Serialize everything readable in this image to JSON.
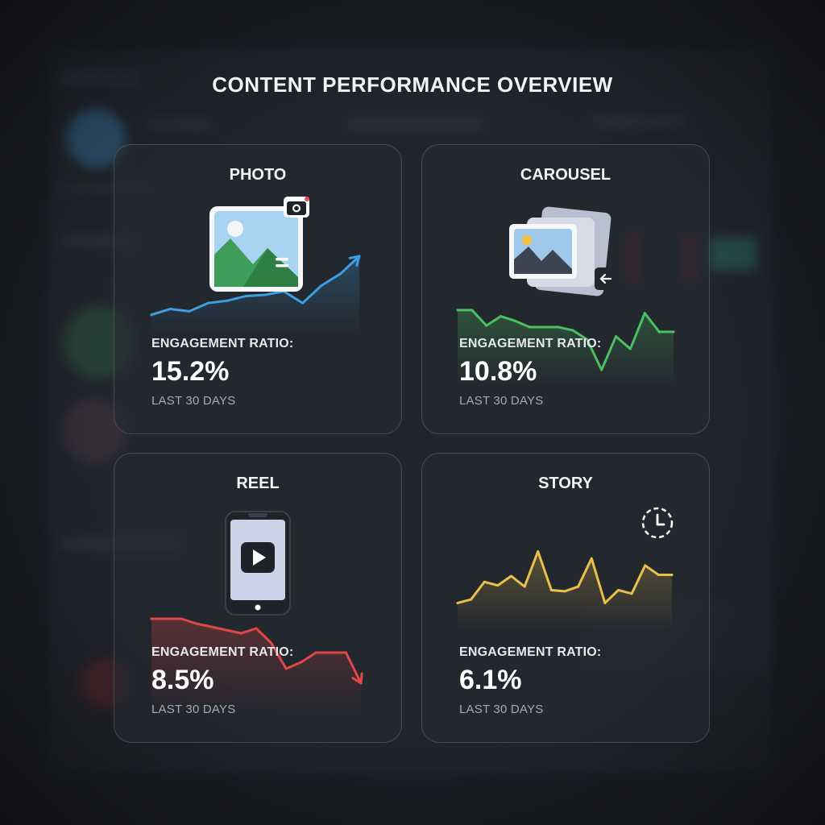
{
  "page": {
    "title": "CONTENT PERFORMANCE OVERVIEW"
  },
  "colors": {
    "background": "#1b1e24",
    "photo": "#3b9fe0",
    "carousel": "#4cc060",
    "reel": "#e04848",
    "story": "#e8c04a"
  },
  "chart_data": [
    {
      "type": "line",
      "title": "PHOTO",
      "icon": "photo-camera-icon",
      "series": [
        {
          "values": [
            1.0,
            2.0,
            1.6,
            3.0,
            3.4,
            4.2,
            4.4,
            5.0,
            3.0,
            6.0,
            8.0,
            11.0
          ]
        }
      ],
      "metric_label": "ENGAGEMENT RATIO:",
      "metric_value": "15.2%",
      "period": "LAST 30 DAYS"
    },
    {
      "type": "line",
      "title": "CAROUSEL",
      "icon": "carousel-stack-icon",
      "series": [
        {
          "values": [
            8.0,
            8.0,
            6.0,
            7.2,
            6.6,
            5.8,
            5.8,
            5.8,
            5.4,
            4.2,
            0.3,
            4.6,
            3.0,
            7.6,
            5.2,
            5.2
          ]
        }
      ],
      "metric_label": "ENGAGEMENT RATIO:",
      "metric_value": "10.8%",
      "period": "LAST 30 DAYS"
    },
    {
      "type": "line",
      "title": "REEL",
      "icon": "phone-video-icon",
      "series": [
        {
          "values": [
            10.0,
            10.0,
            10.0,
            9.4,
            9.0,
            8.6,
            8.2,
            8.8,
            7.0,
            3.8,
            4.6,
            5.8,
            5.8,
            5.8,
            2.0
          ]
        }
      ],
      "metric_label": "ENGAGEMENT RATIO:",
      "metric_value": "8.5%",
      "period": "LAST 30 DAYS"
    },
    {
      "type": "line",
      "title": "STORY",
      "icon": "story-clock-icon",
      "series": [
        {
          "values": [
            2.0,
            2.6,
            5.6,
            5.0,
            6.6,
            4.8,
            10.8,
            4.2,
            4.0,
            4.8,
            9.6,
            2.0,
            4.2,
            3.6,
            8.4,
            6.8,
            6.8
          ]
        }
      ],
      "metric_label": "ENGAGEMENT RATIO:",
      "metric_value": "6.1%",
      "period": "LAST 30 DAYS"
    }
  ]
}
